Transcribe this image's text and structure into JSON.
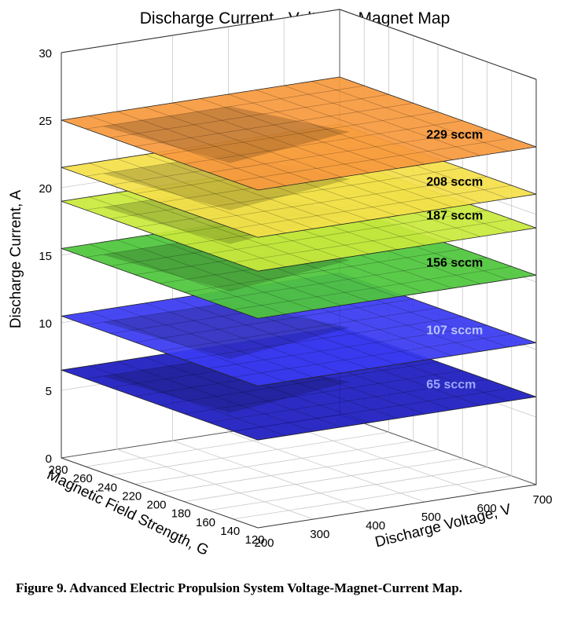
{
  "caption": "Figure 9.  Advanced Electric Propulsion System Voltage-Magnet-Current Map.",
  "chart_data": {
    "type": "surface3d",
    "title": "Discharge Current - Voltage - Magnet Map",
    "zlabel": "Discharge Current, A",
    "xlabel": "Discharge Voltage, V",
    "ylabel": "Magnetic Field Strength, G",
    "z_ticks": [
      "0",
      "5",
      "10",
      "15",
      "20",
      "25",
      "30"
    ],
    "x_ticks": [
      "200",
      "300",
      "400",
      "500",
      "600",
      "700"
    ],
    "y_ticks": [
      "280",
      "260",
      "240",
      "220",
      "200",
      "180",
      "160",
      "140",
      "120"
    ],
    "zlim": [
      0,
      30
    ],
    "xlim": [
      200,
      700
    ],
    "ylim": [
      120,
      280
    ],
    "grid": true,
    "series": [
      {
        "name": "65 sccm",
        "current_A": 6.5,
        "color": "#1c1cc0",
        "label_color": "#9aa8ff"
      },
      {
        "name": "107 sccm",
        "current_A": 10.5,
        "color": "#3a3af2",
        "label_color": "#b8c4ff"
      },
      {
        "name": "156 sccm",
        "current_A": 15.5,
        "color": "#4fc63c",
        "label_color": "#000000"
      },
      {
        "name": "187 sccm",
        "current_A": 19.0,
        "color": "#c9ea3c",
        "label_color": "#000000"
      },
      {
        "name": "208 sccm",
        "current_A": 21.5,
        "color": "#f4e04a",
        "label_color": "#000000"
      },
      {
        "name": "229 sccm",
        "current_A": 25.0,
        "color": "#f89a3e",
        "label_color": "#000000"
      }
    ]
  }
}
